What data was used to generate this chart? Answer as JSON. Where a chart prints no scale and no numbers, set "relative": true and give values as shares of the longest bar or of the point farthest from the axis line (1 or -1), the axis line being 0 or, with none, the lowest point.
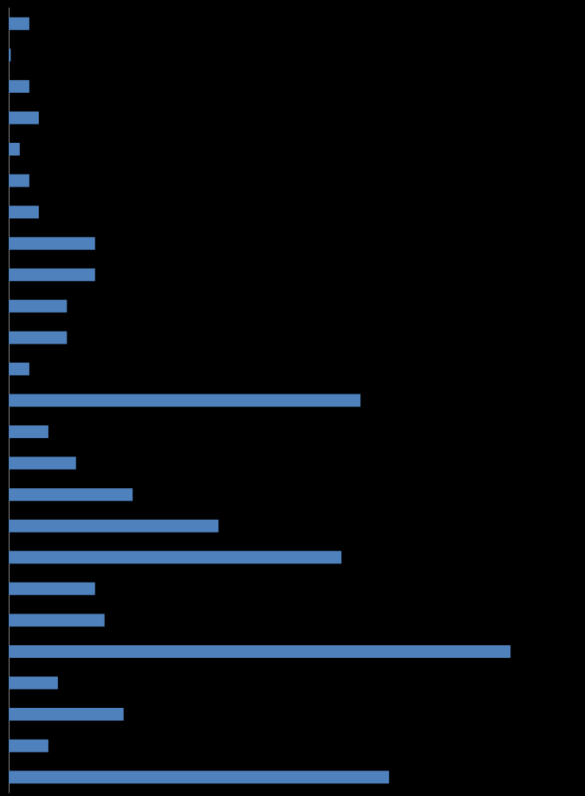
{
  "chart_data": {
    "type": "bar",
    "orientation": "horizontal",
    "relative": true,
    "categories": [
      null,
      null,
      null,
      null,
      null,
      null,
      null,
      null,
      null,
      null,
      null,
      null,
      null,
      null,
      null,
      null,
      null,
      null,
      null,
      null,
      null,
      null,
      null,
      null,
      null
    ],
    "values": [
      0.041,
      0.004,
      0.041,
      0.06,
      0.022,
      0.041,
      0.06,
      0.172,
      0.172,
      0.116,
      0.116,
      0.041,
      0.701,
      0.079,
      0.134,
      0.247,
      0.418,
      0.663,
      0.172,
      0.191,
      1,
      0.098,
      0.229,
      0.079,
      0.758
    ],
    "color": "#4f81bd"
  }
}
